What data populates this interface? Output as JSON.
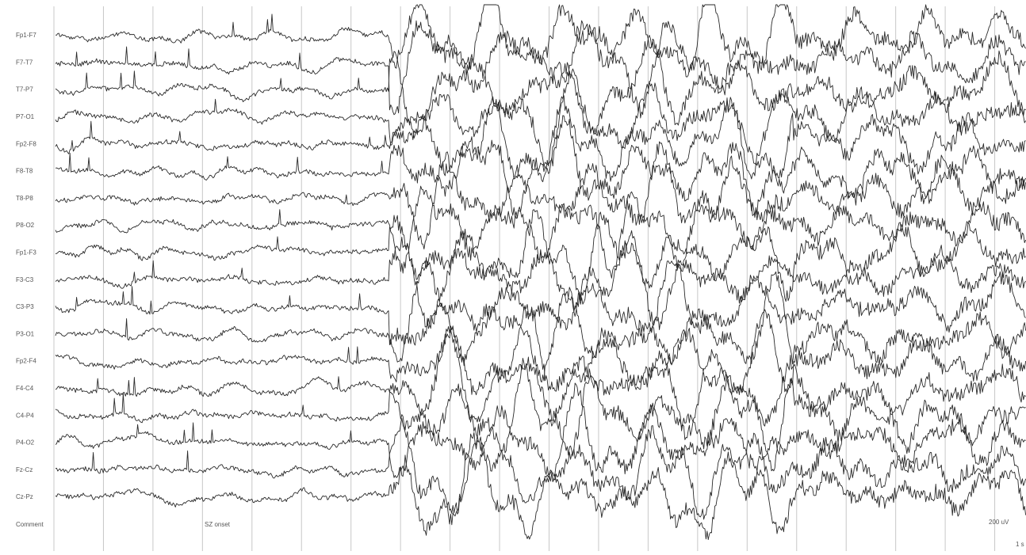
{
  "channels": [
    "Fp1-F7",
    "F7-T7",
    "T7-P7",
    "P7-O1",
    "Fp2-F8",
    "F8-T8",
    "T8-P8",
    "P8-O2",
    "Fp1-F3",
    "F3-C3",
    "C3-P3",
    "P3-O1",
    "Fp2-F4",
    "F4-C4",
    "C4-P4",
    "P4-O2",
    "Fz-Cz",
    "Cz-Pz"
  ],
  "comment_label": "Comment",
  "annotation": "SZ onset",
  "scale": {
    "amplitude": "200 uV",
    "time": "1 s"
  }
}
